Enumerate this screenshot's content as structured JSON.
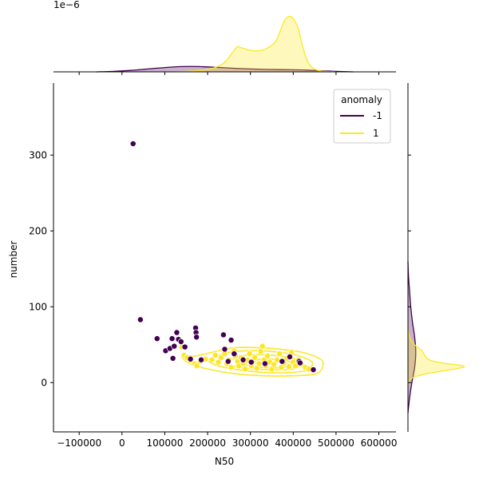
{
  "chart_data": {
    "type": "scatter",
    "title": "",
    "xlabel": "N50",
    "ylabel": "number",
    "xlim": [
      -160000,
      640000
    ],
    "ylim": [
      -65,
      395
    ],
    "xticks": [
      -100000,
      0,
      100000,
      200000,
      300000,
      400000,
      500000,
      600000
    ],
    "xtick_labels": [
      "−100000",
      "0",
      "100000",
      "200000",
      "300000",
      "400000",
      "500000",
      "600000"
    ],
    "yticks": [
      0,
      100,
      200,
      300
    ],
    "ytick_labels": [
      "0",
      "100",
      "200",
      "300"
    ],
    "top_marginal_offset_text": "1e−6",
    "legend": {
      "title": "anomaly",
      "placement": "upper right",
      "entries": [
        {
          "label": "-1",
          "color": "#440154"
        },
        {
          "label": "1",
          "color": "#fde725"
        }
      ]
    },
    "grid": false,
    "series": [
      {
        "name": "-1",
        "color": "#440154",
        "points": [
          [
            26000,
            315
          ],
          [
            43000,
            83
          ],
          [
            82000,
            58
          ],
          [
            102000,
            42
          ],
          [
            112000,
            45
          ],
          [
            117000,
            58
          ],
          [
            119000,
            32
          ],
          [
            122000,
            48
          ],
          [
            128000,
            66
          ],
          [
            132000,
            57
          ],
          [
            138000,
            54
          ],
          [
            147000,
            47
          ],
          [
            160000,
            31
          ],
          [
            172000,
            72
          ],
          [
            173000,
            66
          ],
          [
            174000,
            60
          ],
          [
            185000,
            30
          ],
          [
            237000,
            63
          ],
          [
            240000,
            44
          ],
          [
            248000,
            28
          ],
          [
            255000,
            56
          ],
          [
            262000,
            38
          ],
          [
            283000,
            30
          ],
          [
            302000,
            27
          ],
          [
            334000,
            25
          ],
          [
            374000,
            28
          ],
          [
            392000,
            34
          ],
          [
            414000,
            28
          ],
          [
            416000,
            26
          ],
          [
            447000,
            17
          ]
        ]
      },
      {
        "name": "1",
        "color": "#fde725",
        "points": [
          [
            140000,
            47
          ],
          [
            145000,
            36
          ],
          [
            152000,
            33
          ],
          [
            160000,
            29
          ],
          [
            170000,
            25
          ],
          [
            175000,
            22
          ],
          [
            183000,
            28
          ],
          [
            195000,
            31
          ],
          [
            210000,
            30
          ],
          [
            218000,
            36
          ],
          [
            225000,
            27
          ],
          [
            232000,
            33
          ],
          [
            240000,
            38
          ],
          [
            245000,
            25
          ],
          [
            250000,
            30
          ],
          [
            255000,
            20
          ],
          [
            262000,
            42
          ],
          [
            265000,
            35
          ],
          [
            270000,
            28
          ],
          [
            273000,
            22
          ],
          [
            278000,
            33
          ],
          [
            283000,
            25
          ],
          [
            288000,
            18
          ],
          [
            293000,
            30
          ],
          [
            298000,
            38
          ],
          [
            302000,
            22
          ],
          [
            306000,
            28
          ],
          [
            310000,
            33
          ],
          [
            315000,
            19
          ],
          [
            320000,
            25
          ],
          [
            324000,
            41
          ],
          [
            328000,
            48
          ],
          [
            332000,
            30
          ],
          [
            336000,
            22
          ],
          [
            340000,
            35
          ],
          [
            345000,
            27
          ],
          [
            350000,
            18
          ],
          [
            355000,
            24
          ],
          [
            362000,
            30
          ],
          [
            368000,
            38
          ],
          [
            372000,
            20
          ],
          [
            378000,
            26
          ],
          [
            385000,
            32
          ],
          [
            390000,
            21
          ],
          [
            396000,
            40
          ],
          [
            400000,
            27
          ],
          [
            405000,
            22
          ],
          [
            412000,
            30
          ],
          [
            420000,
            24
          ],
          [
            428000,
            20
          ],
          [
            436000,
            18
          ]
        ]
      }
    ],
    "kde_contours": [
      {
        "name": "1",
        "color": "#fde725",
        "levels": [
          [
            [
              140000,
              36
            ],
            [
              170000,
              35
            ],
            [
              210000,
              40
            ],
            [
              260000,
              46
            ],
            [
              320000,
              46
            ],
            [
              370000,
              44
            ],
            [
              420000,
              40
            ],
            [
              460000,
              32
            ],
            [
              470000,
              24
            ],
            [
              455000,
              12
            ],
            [
              400000,
              9
            ],
            [
              330000,
              9
            ],
            [
              260000,
              12
            ],
            [
              200000,
              18
            ],
            [
              155000,
              26
            ]
          ],
          [
            [
              205000,
              30
            ],
            [
              250000,
              40
            ],
            [
              310000,
              42
            ],
            [
              370000,
              40
            ],
            [
              420000,
              34
            ],
            [
              445000,
              26
            ],
            [
              430000,
              16
            ],
            [
              380000,
              13
            ],
            [
              320000,
              14
            ],
            [
              260000,
              18
            ],
            [
              215000,
              24
            ]
          ],
          [
            [
              245000,
              28
            ],
            [
              290000,
              36
            ],
            [
              350000,
              36
            ],
            [
              400000,
              32
            ],
            [
              420000,
              26
            ],
            [
              400000,
              18
            ],
            [
              350000,
              17
            ],
            [
              290000,
              19
            ],
            [
              252000,
              23
            ]
          ],
          [
            [
              290000,
              26
            ],
            [
              330000,
              31
            ],
            [
              380000,
              29
            ],
            [
              395000,
              25
            ],
            [
              375000,
              20
            ],
            [
              330000,
              20
            ],
            [
              298000,
              22
            ]
          ]
        ]
      }
    ],
    "marginal_x": [
      {
        "name": "-1",
        "color": "#440154",
        "x": [
          -60000,
          -20000,
          20000,
          60000,
          100000,
          140000,
          180000,
          220000,
          260000,
          300000,
          340000,
          380000,
          420000,
          460000,
          500000,
          540000
        ],
        "density": [
          0.0,
          0.02,
          0.06,
          0.12,
          0.18,
          0.22,
          0.22,
          0.19,
          0.15,
          0.12,
          0.1,
          0.09,
          0.08,
          0.05,
          0.02,
          0.0
        ]
      },
      {
        "name": "1",
        "color": "#fde725",
        "x": [
          120000,
          160000,
          200000,
          220000,
          240000,
          260000,
          270000,
          280000,
          300000,
          320000,
          340000,
          360000,
          380000,
          395000,
          410000,
          420000,
          430000,
          440000,
          460000,
          500000
        ],
        "density": [
          0.0,
          0.03,
          0.1,
          0.2,
          0.4,
          0.85,
          1.05,
          1.0,
          0.9,
          0.88,
          1.0,
          1.3,
          2.15,
          2.3,
          1.9,
          1.2,
          0.6,
          0.25,
          0.05,
          0.0
        ]
      }
    ],
    "marginal_y": [
      {
        "name": "-1",
        "color": "#440154",
        "y": [
          -40,
          -20,
          0,
          20,
          40,
          60,
          80,
          100,
          120,
          140,
          160
        ],
        "density": [
          0.0,
          0.03,
          0.07,
          0.12,
          0.14,
          0.12,
          0.08,
          0.05,
          0.03,
          0.01,
          0.0
        ]
      },
      {
        "name": "1",
        "color": "#fde725",
        "y": [
          -5,
          5,
          12,
          18,
          22,
          26,
          30,
          36,
          42,
          50,
          60,
          70
        ],
        "density": [
          0.0,
          0.05,
          0.35,
          0.85,
          1.0,
          0.6,
          0.38,
          0.3,
          0.25,
          0.12,
          0.03,
          0.0
        ]
      }
    ]
  }
}
